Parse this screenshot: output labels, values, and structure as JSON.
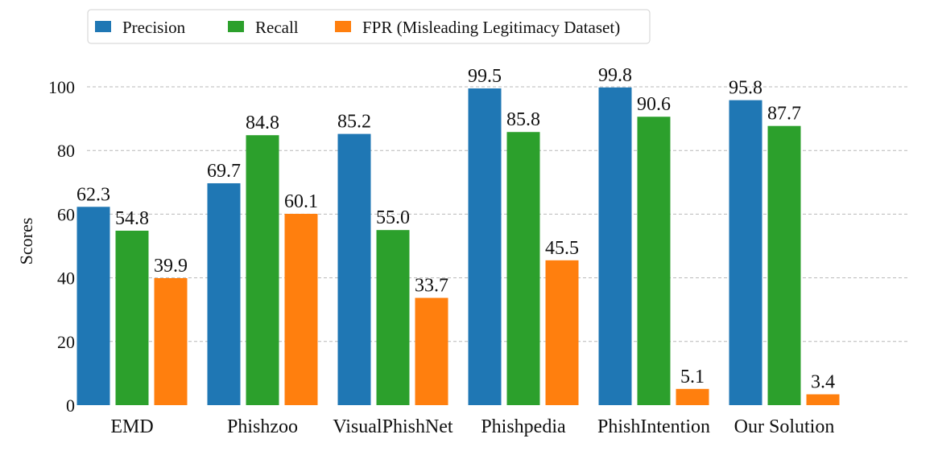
{
  "chart_data": {
    "type": "bar",
    "title": "",
    "xlabel": "",
    "ylabel": "Scores",
    "ylim": [
      0,
      110
    ],
    "yticks": [
      0,
      20,
      40,
      60,
      80,
      100
    ],
    "grid": "horizontal-dashed",
    "legend_position": "top-left",
    "categories": [
      "EMD",
      "Phishzoo",
      "VisualPhishNet",
      "Phishpedia",
      "PhishIntention",
      "Our Solution"
    ],
    "series": [
      {
        "name": "Precision",
        "color": "#1f77b4",
        "values": [
          62.3,
          69.7,
          85.2,
          99.5,
          99.8,
          95.8
        ],
        "labels": [
          "62.3",
          "69.7",
          "85.2",
          "99.5",
          "99.8",
          "95.8"
        ]
      },
      {
        "name": "Recall",
        "color": "#2ca02c",
        "values": [
          54.8,
          84.8,
          55.0,
          85.8,
          90.6,
          87.7
        ],
        "labels": [
          "54.8",
          "84.8",
          "55.0",
          "85.8",
          "90.6",
          "87.7"
        ]
      },
      {
        "name": "FPR (Misleading Legitimacy Dataset)",
        "color": "#ff7f0e",
        "values": [
          39.9,
          60.1,
          33.7,
          45.5,
          5.1,
          3.4
        ],
        "labels": [
          "39.9",
          "60.1",
          "33.7",
          "45.5",
          "5.1",
          "3.4"
        ]
      }
    ]
  }
}
